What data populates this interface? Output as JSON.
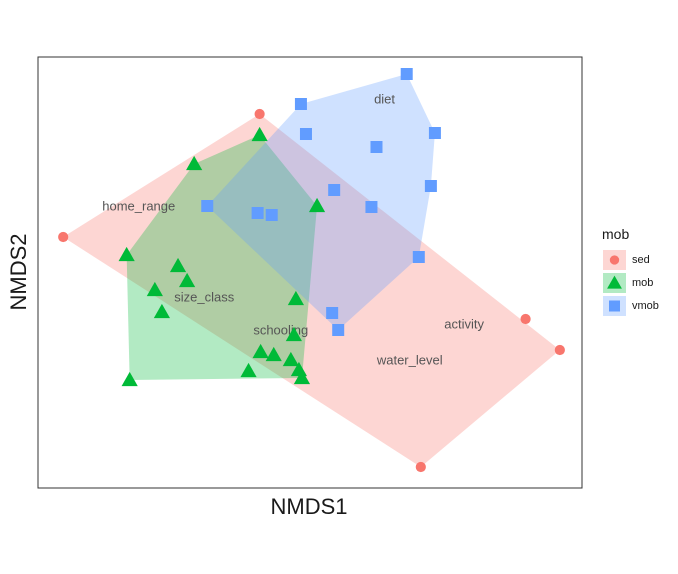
{
  "chart_data": {
    "type": "scatter",
    "title": "",
    "xlabel": "NMDS1",
    "ylabel": "NMDS2",
    "xlim": [
      0,
      540
    ],
    "ylim": [
      0,
      431
    ],
    "ticks_visible": false,
    "grid": false,
    "legend": {
      "position": "right",
      "title": "mob",
      "entries": [
        {
          "label": "sed",
          "shape": "circle",
          "color": "#F8766D"
        },
        {
          "label": "mob",
          "shape": "triangle",
          "color": "#00BA38"
        },
        {
          "label": "vmob",
          "shape": "square",
          "color": "#619CFF"
        }
      ]
    },
    "hull_fill_opacity": 0.3,
    "series": [
      {
        "name": "sed",
        "shape": "circle",
        "color": "#F8766D",
        "points": [
          {
            "x": 220,
            "y": 374
          },
          {
            "x": 25,
            "y": 251
          },
          {
            "x": 380,
            "y": 21
          },
          {
            "x": 518,
            "y": 138
          },
          {
            "x": 484,
            "y": 169
          }
        ],
        "hull": [
          {
            "x": 220,
            "y": 374
          },
          {
            "x": 25,
            "y": 251
          },
          {
            "x": 380,
            "y": 21
          },
          {
            "x": 518,
            "y": 138
          }
        ]
      },
      {
        "name": "mob",
        "shape": "triangle",
        "color": "#00BA38",
        "points": [
          {
            "x": 220,
            "y": 353
          },
          {
            "x": 155,
            "y": 324
          },
          {
            "x": 88,
            "y": 233
          },
          {
            "x": 91,
            "y": 108
          },
          {
            "x": 209,
            "y": 117
          },
          {
            "x": 262,
            "y": 110
          },
          {
            "x": 277,
            "y": 282
          },
          {
            "x": 139,
            "y": 222
          },
          {
            "x": 148,
            "y": 207
          },
          {
            "x": 116,
            "y": 198
          },
          {
            "x": 123,
            "y": 176
          },
          {
            "x": 256,
            "y": 189
          },
          {
            "x": 254,
            "y": 153
          },
          {
            "x": 221,
            "y": 136
          },
          {
            "x": 234,
            "y": 133
          },
          {
            "x": 251,
            "y": 128
          },
          {
            "x": 259,
            "y": 118
          }
        ],
        "hull": [
          {
            "x": 220,
            "y": 353
          },
          {
            "x": 155,
            "y": 324
          },
          {
            "x": 88,
            "y": 233
          },
          {
            "x": 91,
            "y": 108
          },
          {
            "x": 262,
            "y": 110
          },
          {
            "x": 277,
            "y": 282
          }
        ]
      },
      {
        "name": "vmob",
        "shape": "square",
        "color": "#619CFF",
        "points": [
          {
            "x": 366,
            "y": 414
          },
          {
            "x": 394,
            "y": 355
          },
          {
            "x": 390,
            "y": 302
          },
          {
            "x": 378,
            "y": 231
          },
          {
            "x": 298,
            "y": 158
          },
          {
            "x": 292,
            "y": 175
          },
          {
            "x": 168,
            "y": 282
          },
          {
            "x": 261,
            "y": 384
          },
          {
            "x": 266,
            "y": 354
          },
          {
            "x": 336,
            "y": 341
          },
          {
            "x": 294,
            "y": 298
          },
          {
            "x": 331,
            "y": 281
          },
          {
            "x": 218,
            "y": 275
          },
          {
            "x": 232,
            "y": 273
          }
        ],
        "hull": [
          {
            "x": 366,
            "y": 414
          },
          {
            "x": 394,
            "y": 355
          },
          {
            "x": 390,
            "y": 302
          },
          {
            "x": 378,
            "y": 231
          },
          {
            "x": 298,
            "y": 158
          },
          {
            "x": 168,
            "y": 282
          },
          {
            "x": 261,
            "y": 384
          }
        ]
      }
    ],
    "annotations": [
      {
        "text": "diet",
        "x": 344,
        "y": 388
      },
      {
        "text": "home_range",
        "x": 100,
        "y": 281
      },
      {
        "text": "size_class",
        "x": 165,
        "y": 190
      },
      {
        "text": "schooling",
        "x": 241,
        "y": 157
      },
      {
        "text": "activity",
        "x": 423,
        "y": 163
      },
      {
        "text": "water_level",
        "x": 369,
        "y": 127
      }
    ]
  }
}
